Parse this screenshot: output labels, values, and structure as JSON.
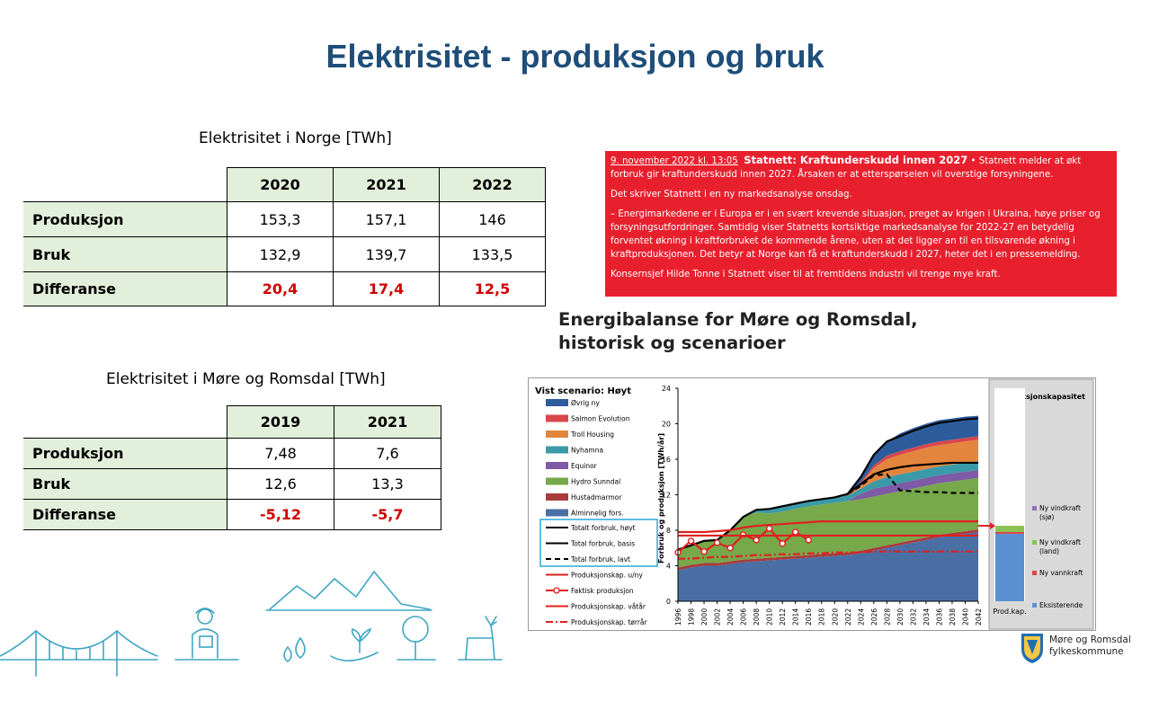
{
  "page": {
    "title": "Elektrisitet - produksjon og bruk"
  },
  "table_norge": {
    "caption": "Elektrisitet i Norge [TWh]",
    "headers": [
      "2020",
      "2021",
      "2022"
    ],
    "rows": [
      {
        "label": "Produksjon",
        "values": [
          "153,3",
          "157,1",
          "146"
        ]
      },
      {
        "label": "Bruk",
        "values": [
          "132,9",
          "139,7",
          "133,5"
        ]
      },
      {
        "label": "Differanse",
        "values": [
          "20,4",
          "17,4",
          "12,5"
        ]
      }
    ]
  },
  "table_mr": {
    "caption": "Elektrisitet i Møre og Romsdal [TWh]",
    "headers": [
      "2019",
      "2021"
    ],
    "rows": [
      {
        "label": "Produksjon",
        "values": [
          "7,48",
          "7,6"
        ]
      },
      {
        "label": "Bruk",
        "values": [
          "12,6",
          "13,3"
        ]
      },
      {
        "label": "Differanse",
        "values": [
          "-5,12",
          "-5,7"
        ]
      }
    ]
  },
  "news": {
    "date": "9. november 2022 kl. 13:05",
    "headline": "Statnett: Kraftunderskudd innen 2027",
    "lead": "• Statnett melder at økt forbruk gir kraftunderskudd innen 2027. Årsaken er at etterspørselen vil overstige forsyningene.",
    "p2": "Det skriver Statnett i en ny markedsanalyse onsdag.",
    "p3": "– Energimarkedene er i Europa er i en svært krevende situasjon, preget av krigen i Ukraina, høye priser og forsyningsutfordringer. Samtidig viser Statnetts kortsiktige markedsanalyse for 2022-27 en betydelig forventet økning i kraftforbruket de kommende årene, uten at det ligger an til en tilsvarende økning i kraftproduksjonen. Det betyr at Norge kan få et kraftunderskudd i 2027, heter det i en pressemelding.",
    "p4": "Konsernsjef Hilde Tonne i Statnett viser til at fremtidens industri vil trenge mye kraft."
  },
  "energy_chart_title": [
    "Energibalanse for Møre og Romsdal,",
    "historisk og scenarioer"
  ],
  "chart_data": {
    "type": "area",
    "title": "Vist scenario: Høyt",
    "ylabel": "Forbruk og produksjon [TWh/år]",
    "ylim": [
      0,
      24
    ],
    "yticks": [
      "0",
      "4",
      "8",
      "12",
      "16",
      "20",
      "24"
    ],
    "x": [
      "1996",
      "1998",
      "2000",
      "2002",
      "2004",
      "2006",
      "2008",
      "2010",
      "2012",
      "2014",
      "2016",
      "2018",
      "2020",
      "2022",
      "2024",
      "2026",
      "2028",
      "2030",
      "2032",
      "2034",
      "2036",
      "2038",
      "2040",
      "2042"
    ],
    "stacked_series": [
      {
        "name": "Alminnelig fors.",
        "color": "#4a6fa5",
        "values": [
          3.5,
          3.8,
          4.0,
          4.0,
          4.2,
          4.4,
          4.5,
          4.6,
          4.7,
          4.8,
          4.9,
          5.0,
          5.1,
          5.2,
          5.4,
          5.7,
          6.0,
          6.3,
          6.6,
          6.9,
          7.2,
          7.4,
          7.6,
          7.8
        ]
      },
      {
        "name": "Hustadmarmor",
        "color": "#a83c3c",
        "values": [
          0.3,
          0.3,
          0.3,
          0.3,
          0.3,
          0.3,
          0.3,
          0.3,
          0.3,
          0.3,
          0.3,
          0.3,
          0.3,
          0.3,
          0.3,
          0.3,
          0.3,
          0.3,
          0.3,
          0.3,
          0.3,
          0.3,
          0.3,
          0.3
        ]
      },
      {
        "name": "Hydro Sunndal",
        "color": "#77a84a",
        "values": [
          2.0,
          2.2,
          2.5,
          2.6,
          3.5,
          4.8,
          5.2,
          5.0,
          5.1,
          5.3,
          5.5,
          5.6,
          5.7,
          5.8,
          5.8,
          5.8,
          5.8,
          5.8,
          5.8,
          5.8,
          5.8,
          5.8,
          5.8,
          5.8
        ]
      },
      {
        "name": "Equinor",
        "color": "#7f5aa6",
        "values": [
          0,
          0,
          0,
          0,
          0,
          0,
          0,
          0,
          0,
          0,
          0,
          0,
          0,
          0,
          0.6,
          0.9,
          0.9,
          0.9,
          0.9,
          0.9,
          0.9,
          0.9,
          0.9,
          0.9
        ]
      },
      {
        "name": "Nyhamna",
        "color": "#3b9aa8",
        "values": [
          0,
          0,
          0,
          0,
          0,
          0,
          0.3,
          0.5,
          0.6,
          0.6,
          0.6,
          0.6,
          0.6,
          0.6,
          0.6,
          0.8,
          1.0,
          1.0,
          1.0,
          1.0,
          1.0,
          1.0,
          1.0,
          1.0
        ]
      },
      {
        "name": "Troll Housing",
        "color": "#e4853d",
        "values": [
          0,
          0,
          0,
          0,
          0,
          0,
          0,
          0,
          0,
          0,
          0,
          0,
          0,
          0,
          0.5,
          1.5,
          2.0,
          2.2,
          2.3,
          2.4,
          2.4,
          2.4,
          2.4,
          2.4
        ]
      },
      {
        "name": "Salmon Evolution",
        "color": "#d9464c",
        "values": [
          0,
          0,
          0,
          0,
          0,
          0,
          0,
          0,
          0,
          0,
          0,
          0,
          0,
          0,
          0.2,
          0.3,
          0.4,
          0.4,
          0.4,
          0.4,
          0.4,
          0.4,
          0.4,
          0.4
        ]
      },
      {
        "name": "Øvrig ny",
        "color": "#2d5c9c",
        "values": [
          0,
          0,
          0,
          0,
          0,
          0,
          0,
          0,
          0,
          0,
          0,
          0,
          0,
          0.2,
          0.6,
          1.2,
          1.6,
          2.0,
          2.2,
          2.3,
          2.4,
          2.4,
          2.4,
          2.3
        ]
      }
    ],
    "line_series": [
      {
        "name": "Totalt forbruk, høyt",
        "color": "#000000",
        "dash": "",
        "values": [
          5.8,
          6.3,
          6.8,
          6.9,
          8.0,
          9.5,
          10.3,
          10.4,
          10.7,
          11.0,
          11.3,
          11.5,
          11.7,
          12.1,
          14.0,
          16.5,
          18.0,
          18.6,
          19.2,
          19.7,
          20.1,
          20.3,
          20.5,
          20.6
        ]
      },
      {
        "name": "Total forbruk, basis",
        "color": "#000000",
        "dash": "",
        "values": [
          null,
          null,
          null,
          null,
          null,
          null,
          null,
          null,
          null,
          null,
          null,
          null,
          null,
          12.1,
          13.2,
          14.3,
          14.8,
          15.1,
          15.3,
          15.4,
          15.5,
          15.6,
          15.6,
          15.6
        ]
      },
      {
        "name": "Total forbruk, lavt",
        "color": "#000000",
        "dash": "6,4",
        "values": [
          null,
          null,
          null,
          null,
          null,
          null,
          null,
          null,
          null,
          null,
          null,
          null,
          null,
          12.1,
          13.0,
          14.2,
          14.3,
          12.5,
          12.4,
          12.3,
          12.3,
          12.2,
          12.2,
          12.2
        ]
      },
      {
        "name": "Produksjonskap. u/ny",
        "color": "#e02020",
        "dash": "",
        "values": [
          7.8,
          7.8,
          7.8,
          7.9,
          8.0,
          8.3,
          8.5,
          8.6,
          8.7,
          8.8,
          8.9,
          9.0,
          9.0,
          9.0,
          9.0,
          9.0,
          9.0,
          9.0,
          9.0,
          9.0,
          9.0,
          9.0,
          9.0,
          9.0
        ]
      },
      {
        "name": "Faktisk produksjon",
        "color": "#e02020",
        "dash": "",
        "marker": true,
        "values": [
          5.5,
          6.8,
          5.6,
          6.6,
          6.0,
          7.5,
          6.9,
          8.2,
          6.5,
          7.8,
          6.9,
          null,
          null,
          null,
          null,
          null,
          null,
          null,
          null,
          null,
          null,
          null,
          null,
          null
        ]
      },
      {
        "name": "Produksjonskap. våtår",
        "color": "#e02020",
        "dash": "",
        "values": [
          7.4,
          7.4,
          7.4,
          7.4,
          7.4,
          7.4,
          7.4,
          7.4,
          7.4,
          7.4,
          7.4,
          7.4,
          7.4,
          7.4,
          7.4,
          7.4,
          7.4,
          7.4,
          7.4,
          7.4,
          7.4,
          7.4,
          7.4,
          7.4
        ]
      },
      {
        "name": "Produksjonskap. tørrår",
        "color": "#e02020",
        "dash": "8,3,2,3",
        "values": [
          4.8,
          4.8,
          4.9,
          5.0,
          5.0,
          5.1,
          5.2,
          5.2,
          5.3,
          5.3,
          5.4,
          5.4,
          5.5,
          5.5,
          5.5,
          5.6,
          5.6,
          5.6,
          5.6,
          5.6,
          5.6,
          5.6,
          5.6,
          5.6
        ]
      }
    ],
    "legend": [
      "Øvrig ny",
      "Salmon Evolution",
      "Troll Housing",
      "Nyhamna",
      "Equinor",
      "Hydro Sunndal",
      "Hustadmarmor",
      "Alminnelig fors.",
      "Totalt forbruk, høyt",
      "Total forbruk, basis",
      "Total forbruk, lavt",
      "Produksjonskap. u/ny",
      "Faktisk produksjon",
      "Produksjonskap. våtår",
      "Produksjonskap. tørrår"
    ],
    "capacity_panel": {
      "title": "Produksjonskapasitet",
      "category": "Prod.kap.",
      "segments": [
        {
          "name": "Eksisterende",
          "value": 7.6,
          "color": "#5b8fd1"
        },
        {
          "name": "Ny vannkraft",
          "value": 0.2,
          "color": "#d9464c"
        },
        {
          "name": "Ny vindkraft (land)",
          "value": 0.7,
          "color": "#8cc152"
        },
        {
          "name": "Ny vindkraft (sjø)",
          "value": 0,
          "color": "#8e6fc1"
        }
      ],
      "legend_labels": [
        {
          "name": "Ny vindkraft",
          "sub": "(sjø)",
          "color": "#8e6fc1"
        },
        {
          "name": "Ny vindkraft",
          "sub": "(land)",
          "color": "#8cc152"
        },
        {
          "name": "Ny vannkraft",
          "sub": "",
          "color": "#d9464c"
        },
        {
          "name": "Eksisterende",
          "sub": "",
          "color": "#5b8fd1"
        }
      ]
    }
  },
  "logo": {
    "line1": "Møre og Romsdal",
    "line2": "fylkeskommune"
  }
}
